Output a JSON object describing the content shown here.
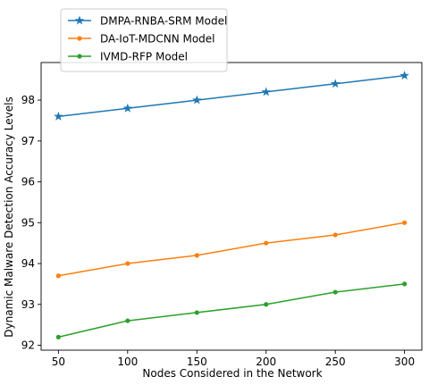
{
  "chart_data": {
    "type": "line",
    "xlabel": "Nodes Considered in the Network",
    "ylabel": "Dynamic Malware Detection Accuracy Levels",
    "x": [
      50,
      100,
      150,
      200,
      250,
      300
    ],
    "xticks": [
      50,
      100,
      150,
      200,
      250,
      300
    ],
    "yticks": [
      92,
      93,
      94,
      95,
      96,
      97,
      98
    ],
    "xlim": [
      37.5,
      312.5
    ],
    "ylim": [
      91.88,
      98.92
    ],
    "grid": false,
    "legend_position": "top-left",
    "series": [
      {
        "name": "DMPA-RNBA-SRM Model",
        "values": [
          97.6,
          97.8,
          98.0,
          98.2,
          98.4,
          98.6
        ],
        "color": "#1f77b4",
        "marker": "star"
      },
      {
        "name": "DA-IoT-MDCNN Model",
        "values": [
          93.7,
          94.0,
          94.2,
          94.5,
          94.7,
          95.0
        ],
        "color": "#ff7f0e",
        "marker": "circle"
      },
      {
        "name": "IVMD-RFP Model",
        "values": [
          92.2,
          92.6,
          92.8,
          93.0,
          93.3,
          93.5
        ],
        "color": "#2ca02c",
        "marker": "circle"
      }
    ]
  }
}
